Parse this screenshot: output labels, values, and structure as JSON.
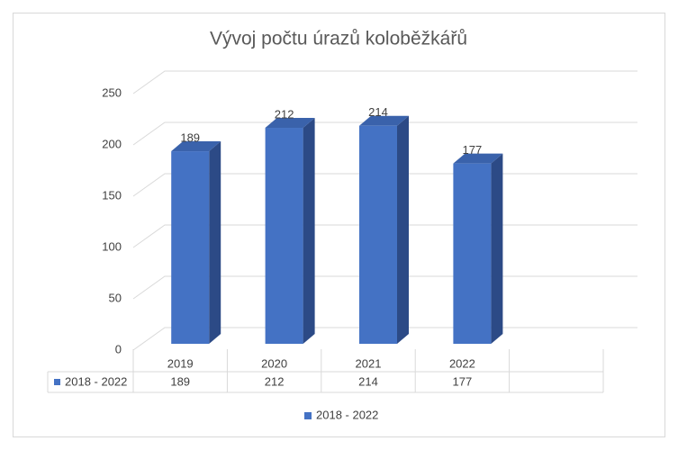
{
  "chart_data": {
    "type": "bar",
    "title": "Vývoj počtu úrazů koloběžkářů",
    "categories": [
      "2019",
      "2020",
      "2021",
      "2022",
      null
    ],
    "series": [
      {
        "name": "2018 - 2022",
        "color": "#4472c4",
        "values": [
          189,
          212,
          214,
          177,
          null
        ]
      }
    ],
    "ylim": [
      0,
      250
    ],
    "yticks": [
      0,
      50,
      100,
      150,
      200,
      250
    ],
    "grid": true
  }
}
